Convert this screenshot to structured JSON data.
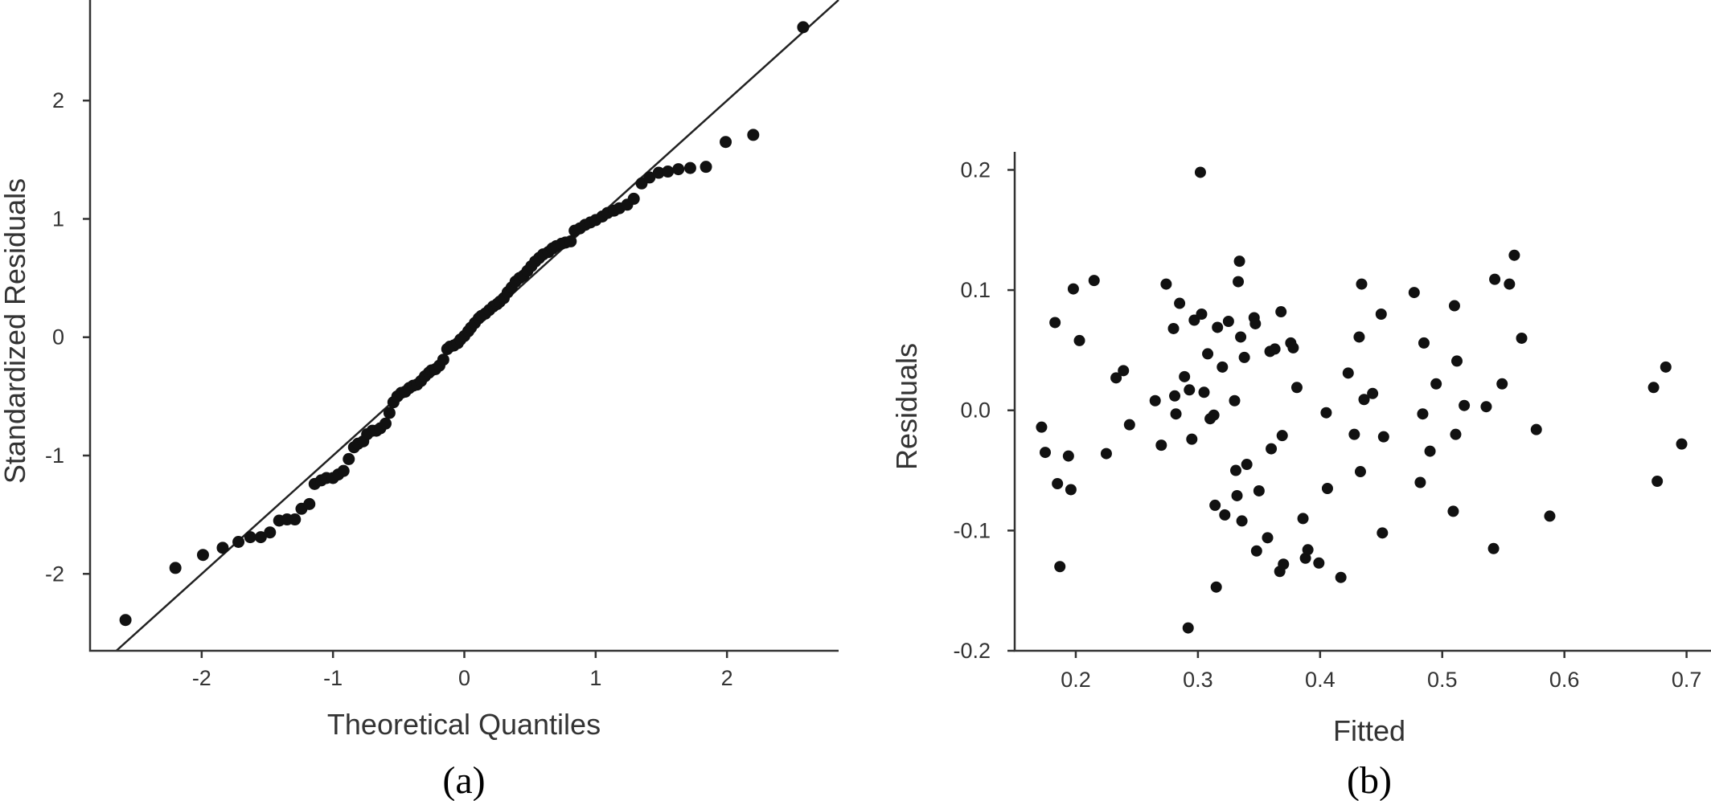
{
  "chart_data": [
    {
      "type": "scatter",
      "subtype": "qq",
      "caption": "(a)",
      "xlabel": "Theoretical Quantiles",
      "ylabel": "Standardized Residuals",
      "xlim": [
        -2.85,
        2.85
      ],
      "ylim": [
        -2.65,
        2.85
      ],
      "xticks": [
        -2,
        -1,
        0,
        1,
        2
      ],
      "yticks": [
        -2,
        -1,
        0,
        1,
        2
      ],
      "grid": false,
      "reference_line": [
        [
          -2.65,
          -2.65
        ],
        [
          2.85,
          2.85
        ]
      ],
      "points": [
        [
          -2.58,
          -2.39
        ],
        [
          -2.2,
          -1.95
        ],
        [
          -1.99,
          -1.84
        ],
        [
          -1.84,
          -1.78
        ],
        [
          -1.72,
          -1.73
        ],
        [
          -1.63,
          -1.69
        ],
        [
          -1.55,
          -1.69
        ],
        [
          -1.48,
          -1.65
        ],
        [
          -1.41,
          -1.55
        ],
        [
          -1.35,
          -1.54
        ],
        [
          -1.29,
          -1.54
        ],
        [
          -1.24,
          -1.45
        ],
        [
          -1.18,
          -1.41
        ],
        [
          -1.14,
          -1.24
        ],
        [
          -1.09,
          -1.21
        ],
        [
          -1.05,
          -1.19
        ],
        [
          -1.0,
          -1.19
        ],
        [
          -0.96,
          -1.16
        ],
        [
          -0.92,
          -1.13
        ],
        [
          -0.88,
          -1.03
        ],
        [
          -0.84,
          -0.93
        ],
        [
          -0.81,
          -0.9
        ],
        [
          -0.77,
          -0.88
        ],
        [
          -0.74,
          -0.82
        ],
        [
          -0.7,
          -0.79
        ],
        [
          -0.67,
          -0.79
        ],
        [
          -0.64,
          -0.77
        ],
        [
          -0.6,
          -0.73
        ],
        [
          -0.57,
          -0.64
        ],
        [
          -0.54,
          -0.55
        ],
        [
          -0.51,
          -0.5
        ],
        [
          -0.48,
          -0.47
        ],
        [
          -0.45,
          -0.46
        ],
        [
          -0.42,
          -0.43
        ],
        [
          -0.39,
          -0.41
        ],
        [
          -0.36,
          -0.4
        ],
        [
          -0.33,
          -0.37
        ],
        [
          -0.3,
          -0.33
        ],
        [
          -0.27,
          -0.3
        ],
        [
          -0.25,
          -0.28
        ],
        [
          -0.22,
          -0.27
        ],
        [
          -0.19,
          -0.24
        ],
        [
          -0.16,
          -0.19
        ],
        [
          -0.13,
          -0.1
        ],
        [
          -0.11,
          -0.08
        ],
        [
          -0.08,
          -0.07
        ],
        [
          -0.05,
          -0.05
        ],
        [
          -0.03,
          -0.02
        ],
        [
          0.0,
          0.01
        ],
        [
          0.03,
          0.05
        ],
        [
          0.05,
          0.08
        ],
        [
          0.08,
          0.12
        ],
        [
          0.11,
          0.16
        ],
        [
          0.13,
          0.18
        ],
        [
          0.16,
          0.2
        ],
        [
          0.19,
          0.23
        ],
        [
          0.22,
          0.26
        ],
        [
          0.25,
          0.28
        ],
        [
          0.27,
          0.3
        ],
        [
          0.3,
          0.33
        ],
        [
          0.33,
          0.38
        ],
        [
          0.36,
          0.42
        ],
        [
          0.39,
          0.47
        ],
        [
          0.42,
          0.5
        ],
        [
          0.45,
          0.52
        ],
        [
          0.48,
          0.56
        ],
        [
          0.51,
          0.6
        ],
        [
          0.54,
          0.64
        ],
        [
          0.57,
          0.67
        ],
        [
          0.6,
          0.7
        ],
        [
          0.64,
          0.72
        ],
        [
          0.67,
          0.75
        ],
        [
          0.7,
          0.77
        ],
        [
          0.74,
          0.79
        ],
        [
          0.77,
          0.8
        ],
        [
          0.81,
          0.81
        ],
        [
          0.84,
          0.9
        ],
        [
          0.88,
          0.92
        ],
        [
          0.92,
          0.95
        ],
        [
          0.96,
          0.97
        ],
        [
          1.0,
          0.99
        ],
        [
          1.05,
          1.02
        ],
        [
          1.09,
          1.05
        ],
        [
          1.14,
          1.07
        ],
        [
          1.18,
          1.09
        ],
        [
          1.24,
          1.12
        ],
        [
          1.29,
          1.17
        ],
        [
          1.35,
          1.3
        ],
        [
          1.41,
          1.35
        ],
        [
          1.48,
          1.39
        ],
        [
          1.55,
          1.4
        ],
        [
          1.63,
          1.42
        ],
        [
          1.72,
          1.43
        ],
        [
          1.84,
          1.44
        ],
        [
          1.99,
          1.65
        ],
        [
          2.2,
          1.71
        ],
        [
          2.58,
          2.62
        ]
      ]
    },
    {
      "type": "scatter",
      "caption": "(b)",
      "xlabel": "Fitted",
      "ylabel": "Residuals",
      "xlim": [
        0.15,
        0.72
      ],
      "ylim": [
        -0.2,
        0.215
      ],
      "xticks": [
        0.2,
        0.3,
        0.4,
        0.5,
        0.6,
        0.7
      ],
      "yticks": [
        0.2,
        0.1,
        0.0,
        -0.1,
        -0.2
      ],
      "ytick_labels": [
        "0.2",
        "0.1",
        "0.0",
        "-0.1",
        "-0.2"
      ],
      "grid": false,
      "points": [
        [
          0.172,
          -0.014
        ],
        [
          0.175,
          -0.035
        ],
        [
          0.183,
          0.073
        ],
        [
          0.185,
          -0.061
        ],
        [
          0.187,
          -0.13
        ],
        [
          0.194,
          -0.038
        ],
        [
          0.196,
          -0.066
        ],
        [
          0.198,
          0.101
        ],
        [
          0.203,
          0.058
        ],
        [
          0.215,
          0.108
        ],
        [
          0.225,
          -0.036
        ],
        [
          0.233,
          0.027
        ],
        [
          0.239,
          0.033
        ],
        [
          0.244,
          -0.012
        ],
        [
          0.265,
          0.008
        ],
        [
          0.27,
          -0.029
        ],
        [
          0.274,
          0.105
        ],
        [
          0.28,
          0.068
        ],
        [
          0.281,
          0.012
        ],
        [
          0.282,
          -0.003
        ],
        [
          0.285,
          0.089
        ],
        [
          0.289,
          0.028
        ],
        [
          0.292,
          -0.181
        ],
        [
          0.293,
          0.017
        ],
        [
          0.295,
          -0.024
        ],
        [
          0.297,
          0.075
        ],
        [
          0.302,
          0.198
        ],
        [
          0.303,
          0.08
        ],
        [
          0.305,
          0.015
        ],
        [
          0.308,
          0.047
        ],
        [
          0.31,
          -0.007
        ],
        [
          0.313,
          -0.004
        ],
        [
          0.314,
          -0.079
        ],
        [
          0.315,
          -0.147
        ],
        [
          0.316,
          0.069
        ],
        [
          0.32,
          0.036
        ],
        [
          0.322,
          -0.087
        ],
        [
          0.325,
          0.074
        ],
        [
          0.33,
          0.008
        ],
        [
          0.331,
          -0.05
        ],
        [
          0.332,
          -0.071
        ],
        [
          0.333,
          0.107
        ],
        [
          0.334,
          0.124
        ],
        [
          0.335,
          0.061
        ],
        [
          0.336,
          -0.092
        ],
        [
          0.338,
          0.044
        ],
        [
          0.34,
          -0.045
        ],
        [
          0.346,
          0.077
        ],
        [
          0.347,
          0.072
        ],
        [
          0.348,
          -0.117
        ],
        [
          0.35,
          -0.067
        ],
        [
          0.357,
          -0.106
        ],
        [
          0.359,
          0.049
        ],
        [
          0.36,
          -0.032
        ],
        [
          0.363,
          0.051
        ],
        [
          0.367,
          -0.134
        ],
        [
          0.368,
          0.082
        ],
        [
          0.369,
          -0.021
        ],
        [
          0.37,
          -0.128
        ],
        [
          0.376,
          0.056
        ],
        [
          0.378,
          0.052
        ],
        [
          0.381,
          0.019
        ],
        [
          0.386,
          -0.09
        ],
        [
          0.388,
          -0.123
        ],
        [
          0.39,
          -0.116
        ],
        [
          0.399,
          -0.127
        ],
        [
          0.405,
          -0.002
        ],
        [
          0.406,
          -0.065
        ],
        [
          0.417,
          -0.139
        ],
        [
          0.423,
          0.031
        ],
        [
          0.428,
          -0.02
        ],
        [
          0.432,
          0.061
        ],
        [
          0.433,
          -0.051
        ],
        [
          0.434,
          0.105
        ],
        [
          0.436,
          0.009
        ],
        [
          0.443,
          0.014
        ],
        [
          0.45,
          0.08
        ],
        [
          0.451,
          -0.102
        ],
        [
          0.452,
          -0.022
        ],
        [
          0.477,
          0.098
        ],
        [
          0.482,
          -0.06
        ],
        [
          0.484,
          -0.003
        ],
        [
          0.485,
          0.056
        ],
        [
          0.49,
          -0.034
        ],
        [
          0.495,
          0.022
        ],
        [
          0.509,
          -0.084
        ],
        [
          0.51,
          0.087
        ],
        [
          0.511,
          -0.02
        ],
        [
          0.512,
          0.041
        ],
        [
          0.518,
          0.004
        ],
        [
          0.536,
          0.003
        ],
        [
          0.542,
          -0.115
        ],
        [
          0.543,
          0.109
        ],
        [
          0.549,
          0.022
        ],
        [
          0.555,
          0.105
        ],
        [
          0.559,
          0.129
        ],
        [
          0.565,
          0.06
        ],
        [
          0.577,
          -0.016
        ],
        [
          0.588,
          -0.088
        ],
        [
          0.673,
          0.019
        ],
        [
          0.676,
          -0.059
        ],
        [
          0.683,
          0.036
        ],
        [
          0.696,
          -0.028
        ]
      ]
    }
  ]
}
